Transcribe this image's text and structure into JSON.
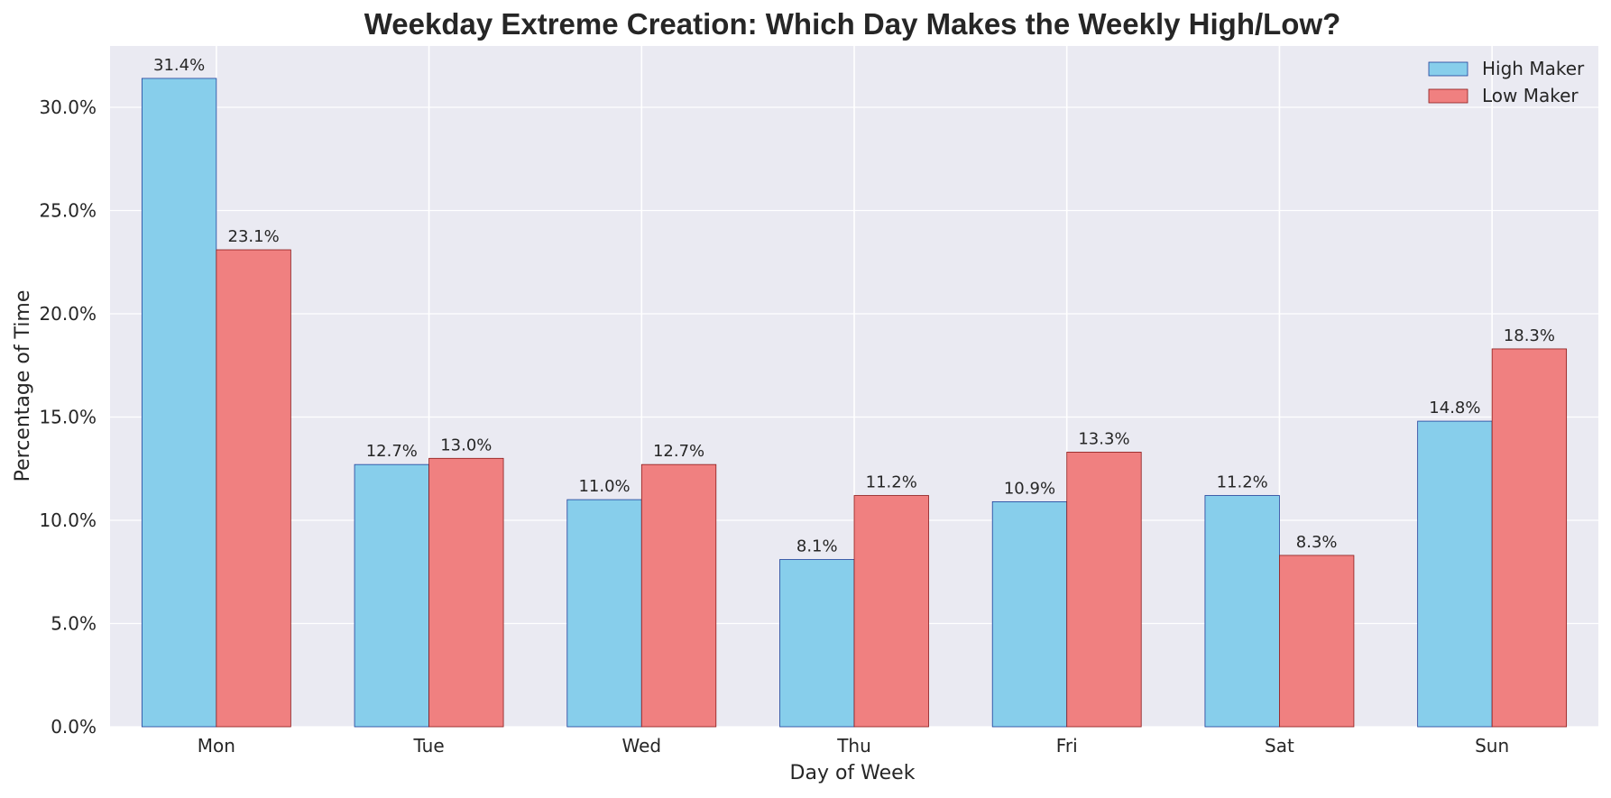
{
  "chart_data": {
    "type": "bar",
    "title": "Weekday Extreme Creation: Which Day Makes the Weekly High/Low?",
    "xlabel": "Day of Week",
    "ylabel": "Percentage of Time",
    "categories": [
      "Mon",
      "Tue",
      "Wed",
      "Thu",
      "Fri",
      "Sat",
      "Sun"
    ],
    "series": [
      {
        "name": "High Maker",
        "color": "#87ceeb",
        "edge": "#1f3f9a",
        "values": [
          31.4,
          12.7,
          11.0,
          8.1,
          10.9,
          11.2,
          14.8
        ],
        "labels": [
          "31.4%",
          "12.7%",
          "11.0%",
          "8.1%",
          "10.9%",
          "11.2%",
          "14.8%"
        ]
      },
      {
        "name": "Low Maker",
        "color": "#f08080",
        "edge": "#8b1a1a",
        "values": [
          23.1,
          13.0,
          12.7,
          11.2,
          13.3,
          8.3,
          18.3
        ],
        "labels": [
          "23.1%",
          "13.0%",
          "12.7%",
          "11.2%",
          "13.3%",
          "8.3%",
          "18.3%"
        ]
      }
    ],
    "ylim": [
      0,
      32.97
    ],
    "yticks": [
      0,
      5,
      10,
      15,
      20,
      25,
      30
    ],
    "ytick_labels": [
      "0.0%",
      "5.0%",
      "10.0%",
      "15.0%",
      "20.0%",
      "25.0%",
      "30.0%"
    ],
    "grid": true,
    "legend_position": "top-right",
    "background": "#eaeaf2"
  }
}
